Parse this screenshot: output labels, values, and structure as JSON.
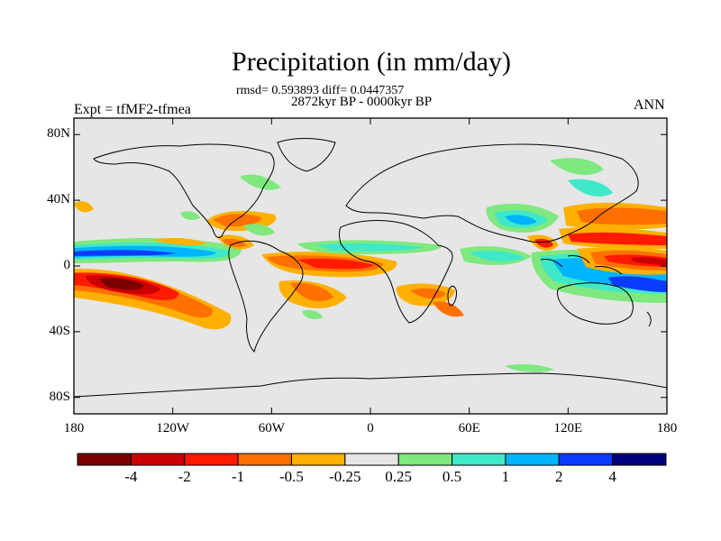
{
  "title": "Precipitation (in mm/day)",
  "stats": "rmsd= 0.593893 diff= 0.0447357",
  "period": "2872kyr BP - 0000kyr BP",
  "experiment": "Expt = tfMF2-tfmea",
  "season": "ANN",
  "map": {
    "projection": "cylindrical equidistant",
    "lon_range": [
      -180,
      180
    ],
    "lat_range": [
      -90,
      90
    ],
    "lat_ticks": [
      {
        "value": 80,
        "label": "80N"
      },
      {
        "value": 40,
        "label": "40N"
      },
      {
        "value": 0,
        "label": "0"
      },
      {
        "value": -40,
        "label": "40S"
      },
      {
        "value": -80,
        "label": "80S"
      }
    ],
    "lon_ticks": [
      {
        "value": -180,
        "label": "180"
      },
      {
        "value": -120,
        "label": "120W"
      },
      {
        "value": -60,
        "label": "60W"
      },
      {
        "value": 0,
        "label": "0"
      },
      {
        "value": 60,
        "label": "60E"
      },
      {
        "value": 120,
        "label": "120E"
      },
      {
        "value": 180,
        "label": "180"
      }
    ],
    "background_color": "#e6e6e6",
    "coastline_color": "#000000"
  },
  "colorbar": {
    "colors": [
      "#7a0000",
      "#cc0000",
      "#ff1a00",
      "#ff7000",
      "#ffb000",
      "#e6e6e6",
      "#7fe87f",
      "#3fe8c8",
      "#00b4ff",
      "#0a3cff",
      "#00007f"
    ],
    "labels": [
      "-4",
      "-2",
      "-1",
      "-0.5",
      "-0.25",
      "0.25",
      "0.5",
      "1",
      "2",
      "4"
    ]
  }
}
